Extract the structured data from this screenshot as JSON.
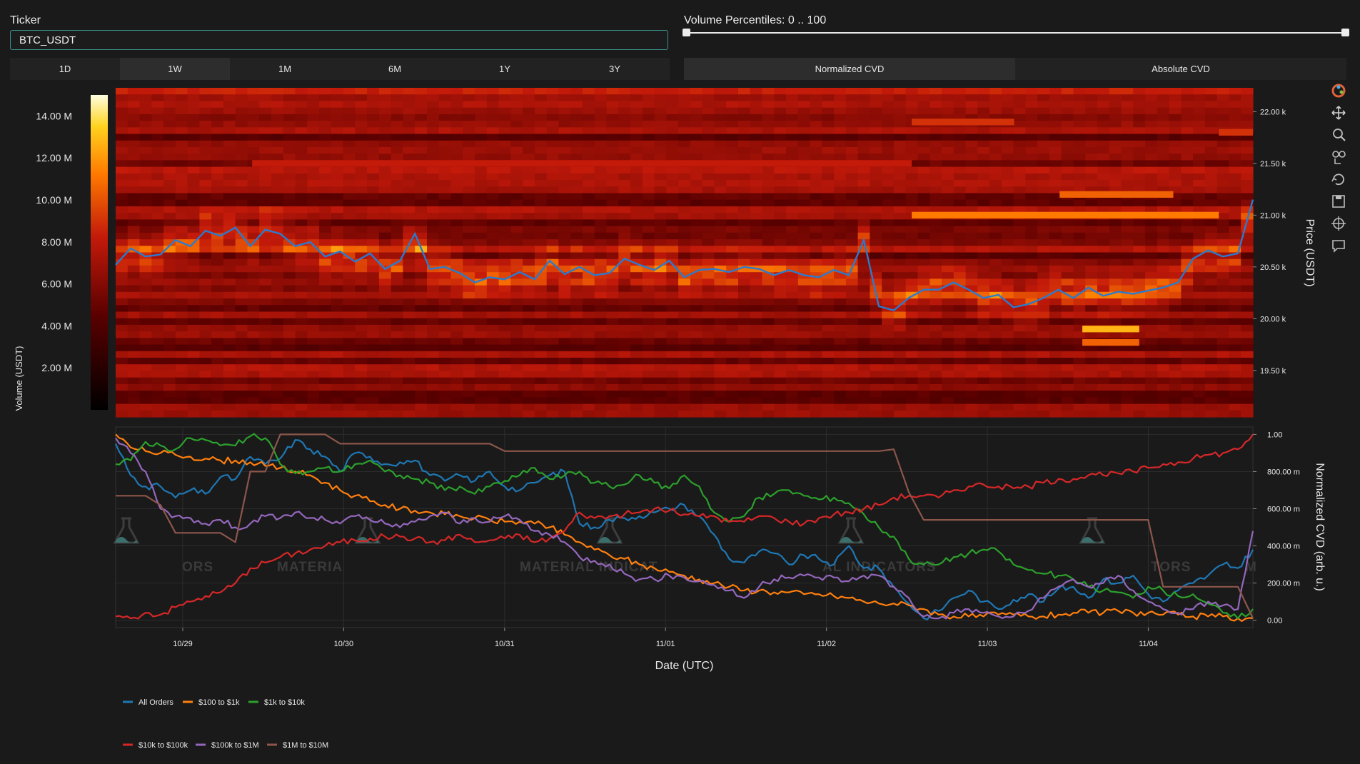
{
  "ticker": {
    "label": "Ticker",
    "value": "BTC_USDT"
  },
  "volume_percentiles": {
    "label": "Volume Percentiles: 0 .. 100",
    "min": 0,
    "max": 100
  },
  "range_buttons": [
    {
      "label": "1D",
      "active": false
    },
    {
      "label": "1W",
      "active": true
    },
    {
      "label": "1M",
      "active": false
    },
    {
      "label": "6M",
      "active": false
    },
    {
      "label": "1Y",
      "active": false
    },
    {
      "label": "3Y",
      "active": false
    }
  ],
  "cvd_buttons": [
    {
      "label": "Normalized CVD",
      "active": true
    },
    {
      "label": "Absolute CVD",
      "active": false
    }
  ],
  "modebar_icons": [
    "plotly-logo-icon",
    "pan-icon",
    "zoom-icon",
    "zoom-select-icon",
    "reset-axes-icon",
    "save-icon",
    "crosshair-icon",
    "comment-icon"
  ],
  "watermark_text": [
    "ORS",
    "MATERIA",
    "MATERIAL INDICAT",
    "AL INDICATORS",
    "TORS",
    "M"
  ],
  "colors": {
    "all_orders": "#1f77b4",
    "100_1k": "#ff7f0e",
    "1k_10k": "#2ca02c",
    "10k_100k": "#d62728",
    "100k_1m": "#9467bd",
    "1m_10m": "#8c564b",
    "price_line": "#2a7bcf"
  },
  "chart_data": [
    {
      "type": "heatmap",
      "x_range": [
        "2022-10-28 14:00",
        "2022-11-04 16:00"
      ],
      "y_label": "Price (USDT)",
      "y_ticks": [
        "19.50 k",
        "20.00 k",
        "20.50 k",
        "21.00 k",
        "21.50 k",
        "22.00 k"
      ],
      "y_tick_values": [
        19500,
        20000,
        20500,
        21000,
        21500,
        22000
      ],
      "ylim": [
        19050,
        22230
      ],
      "colorbar": {
        "title": "Volume (USDT)",
        "ticks": [
          "2.00 M",
          "4.00 M",
          "6.00 M",
          "8.00 M",
          "10.00 M",
          "12.00 M",
          "14.00 M"
        ],
        "tick_values": [
          2,
          4,
          6,
          8,
          10,
          12,
          14
        ],
        "range": [
          0,
          15
        ]
      },
      "highlight_bands": [
        {
          "price": 21500,
          "x_from": 0.12,
          "x_to": 0.7,
          "level": 0.55
        },
        {
          "price": 21000,
          "x_from": 0.7,
          "x_to": 0.97,
          "level": 0.75
        },
        {
          "price": 21200,
          "x_from": 0.83,
          "x_to": 0.93,
          "level": 0.7
        },
        {
          "price": 21900,
          "x_from": 0.7,
          "x_to": 0.79,
          "level": 0.6
        },
        {
          "price": 21800,
          "x_from": 0.97,
          "x_to": 1.0,
          "level": 0.6
        },
        {
          "price": 19900,
          "x_from": 0.85,
          "x_to": 0.9,
          "level": 0.85
        },
        {
          "price": 19770,
          "x_from": 0.85,
          "x_to": 0.9,
          "level": 0.7
        }
      ],
      "series": [
        {
          "name": "Price",
          "values": [
            20520,
            20680,
            20600,
            20620,
            20760,
            20700,
            20850,
            20800,
            20880,
            20700,
            20860,
            20820,
            20700,
            20740,
            20600,
            20650,
            20550,
            20630,
            20480,
            20560,
            20820,
            20480,
            20500,
            20440,
            20350,
            20400,
            20380,
            20450,
            20380,
            20560,
            20430,
            20500,
            20420,
            20440,
            20580,
            20520,
            20470,
            20560,
            20400,
            20470,
            20480,
            20450,
            20500,
            20480,
            20420,
            20470,
            20420,
            20400,
            20470,
            20420,
            20760,
            20120,
            20080,
            20200,
            20280,
            20280,
            20350,
            20280,
            20200,
            20230,
            20110,
            20140,
            20200,
            20280,
            20200,
            20300,
            20220,
            20260,
            20240,
            20270,
            20300,
            20350,
            20580,
            20660,
            20600,
            20630,
            21150
          ]
        }
      ]
    },
    {
      "type": "line",
      "x_ticks": [
        "10/29",
        "10/30",
        "10/31",
        "11/01",
        "11/02",
        "11/03",
        "11/04"
      ],
      "xlabel": "Date (UTC)",
      "ylabel": "Normalized CVD (arb. u.)",
      "y_ticks": [
        "0.00",
        "200.00 m",
        "400.00 m",
        "600.00 m",
        "800.00 m",
        "1.00"
      ],
      "y_tick_values": [
        0,
        0.2,
        0.4,
        0.6,
        0.8,
        1.0
      ],
      "ylim": [
        -0.04,
        1.04
      ],
      "legend": "bottom-left",
      "series": [
        {
          "name": "All Orders",
          "key": "all_orders",
          "values": [
            0.95,
            0.78,
            0.72,
            0.72,
            0.66,
            0.7,
            0.68,
            0.77,
            0.76,
            0.88,
            0.84,
            0.87,
            0.97,
            0.92,
            0.88,
            0.8,
            0.9,
            0.88,
            0.84,
            0.85,
            0.86,
            0.78,
            0.75,
            0.78,
            0.75,
            0.8,
            0.72,
            0.7,
            0.74,
            0.78,
            0.8,
            0.52,
            0.5,
            0.54,
            0.55,
            0.56,
            0.58,
            0.6,
            0.62,
            0.56,
            0.46,
            0.33,
            0.31,
            0.37,
            0.36,
            0.3,
            0.35,
            0.33,
            0.3,
            0.4,
            0.28,
            0.28,
            0.18,
            0.09,
            0.01,
            0.05,
            0.12,
            0.16,
            0.1,
            0.06,
            0.11,
            0.14,
            0.1,
            0.17,
            0.18,
            0.12,
            0.22,
            0.2,
            0.24,
            0.14,
            0.1,
            0.16,
            0.2,
            0.24,
            0.3,
            0.28,
            0.38
          ]
        },
        {
          "name": "$100 to $1k",
          "key": "100_1k",
          "values": [
            1.0,
            0.93,
            0.91,
            0.9,
            0.89,
            0.88,
            0.87,
            0.86,
            0.86,
            0.85,
            0.83,
            0.82,
            0.8,
            0.78,
            0.74,
            0.7,
            0.67,
            0.64,
            0.62,
            0.6,
            0.59,
            0.58,
            0.57,
            0.56,
            0.55,
            0.54,
            0.53,
            0.53,
            0.52,
            0.5,
            0.46,
            0.42,
            0.38,
            0.35,
            0.33,
            0.3,
            0.28,
            0.26,
            0.24,
            0.22,
            0.2,
            0.18,
            0.16,
            0.16,
            0.15,
            0.15,
            0.14,
            0.14,
            0.13,
            0.12,
            0.1,
            0.09,
            0.09,
            0.08,
            0.06,
            0.03,
            0.02,
            0.02,
            0.02,
            0.03,
            0.03,
            0.02,
            0.02,
            0.03,
            0.04,
            0.04,
            0.04,
            0.05,
            0.04,
            0.04,
            0.03,
            0.03,
            0.02,
            0.02,
            0.02,
            0.01,
            0.01
          ]
        },
        {
          "name": "$1k to $10k",
          "key": "1k_10k",
          "values": [
            0.84,
            0.86,
            0.96,
            0.94,
            0.92,
            0.98,
            0.97,
            0.94,
            0.94,
            0.99,
            0.98,
            0.84,
            0.79,
            0.8,
            0.82,
            0.8,
            0.84,
            0.86,
            0.8,
            0.78,
            0.76,
            0.74,
            0.7,
            0.72,
            0.68,
            0.72,
            0.75,
            0.78,
            0.82,
            0.76,
            0.78,
            0.8,
            0.74,
            0.72,
            0.73,
            0.78,
            0.74,
            0.71,
            0.78,
            0.72,
            0.58,
            0.53,
            0.56,
            0.66,
            0.68,
            0.7,
            0.67,
            0.65,
            0.66,
            0.63,
            0.57,
            0.5,
            0.45,
            0.33,
            0.3,
            0.3,
            0.34,
            0.36,
            0.38,
            0.37,
            0.3,
            0.27,
            0.25,
            0.24,
            0.22,
            0.18,
            0.16,
            0.15,
            0.12,
            0.18,
            0.16,
            0.13,
            0.14,
            0.09,
            0.04,
            0.01,
            0.06
          ]
        },
        {
          "name": "$10k to $100k",
          "key": "10k_100k",
          "values": [
            0.02,
            0.01,
            0.04,
            0.03,
            0.07,
            0.1,
            0.13,
            0.15,
            0.2,
            0.28,
            0.31,
            0.34,
            0.36,
            0.38,
            0.4,
            0.42,
            0.43,
            0.44,
            0.45,
            0.45,
            0.44,
            0.42,
            0.43,
            0.46,
            0.42,
            0.43,
            0.44,
            0.46,
            0.42,
            0.44,
            0.48,
            0.58,
            0.55,
            0.56,
            0.57,
            0.58,
            0.6,
            0.59,
            0.57,
            0.56,
            0.56,
            0.53,
            0.53,
            0.56,
            0.55,
            0.53,
            0.52,
            0.55,
            0.57,
            0.58,
            0.6,
            0.62,
            0.66,
            0.67,
            0.67,
            0.66,
            0.7,
            0.72,
            0.73,
            0.72,
            0.71,
            0.72,
            0.74,
            0.76,
            0.76,
            0.78,
            0.78,
            0.79,
            0.8,
            0.82,
            0.84,
            0.85,
            0.87,
            0.89,
            0.9,
            0.92,
            1.0
          ]
        },
        {
          "name": "$100k to $1M",
          "key": "100k_1m",
          "values": [
            0.98,
            0.9,
            0.8,
            0.6,
            0.56,
            0.55,
            0.52,
            0.54,
            0.5,
            0.52,
            0.56,
            0.55,
            0.58,
            0.55,
            0.54,
            0.52,
            0.56,
            0.54,
            0.52,
            0.5,
            0.53,
            0.56,
            0.58,
            0.52,
            0.55,
            0.53,
            0.56,
            0.54,
            0.48,
            0.46,
            0.42,
            0.34,
            0.32,
            0.3,
            0.25,
            0.22,
            0.22,
            0.24,
            0.23,
            0.21,
            0.19,
            0.16,
            0.12,
            0.18,
            0.22,
            0.23,
            0.24,
            0.23,
            0.23,
            0.21,
            0.24,
            0.24,
            0.18,
            0.12,
            0.02,
            0.01,
            0.04,
            0.06,
            0.04,
            0.02,
            0.02,
            0.05,
            0.12,
            0.18,
            0.22,
            0.18,
            0.2,
            0.24,
            0.16,
            0.1,
            0.06,
            0.04,
            0.06,
            0.1,
            0.08,
            0.06,
            0.48
          ]
        },
        {
          "name": "$1M to $10M",
          "key": "1m_10m",
          "values": [
            0.67,
            0.67,
            0.67,
            0.62,
            0.47,
            0.47,
            0.47,
            0.47,
            0.42,
            0.8,
            0.8,
            1.0,
            1.0,
            1.0,
            1.0,
            0.95,
            0.95,
            0.95,
            0.95,
            0.95,
            0.95,
            0.95,
            0.95,
            0.95,
            0.95,
            0.95,
            0.91,
            0.91,
            0.91,
            0.91,
            0.91,
            0.91,
            0.91,
            0.91,
            0.91,
            0.91,
            0.91,
            0.91,
            0.91,
            0.91,
            0.91,
            0.91,
            0.91,
            0.91,
            0.91,
            0.91,
            0.91,
            0.91,
            0.91,
            0.91,
            0.91,
            0.91,
            0.92,
            0.69,
            0.54,
            0.54,
            0.54,
            0.54,
            0.54,
            0.54,
            0.54,
            0.54,
            0.54,
            0.54,
            0.54,
            0.54,
            0.54,
            0.54,
            0.54,
            0.54,
            0.18,
            0.18,
            0.18,
            0.18,
            0.18,
            0.18,
            0.01
          ]
        }
      ]
    }
  ]
}
